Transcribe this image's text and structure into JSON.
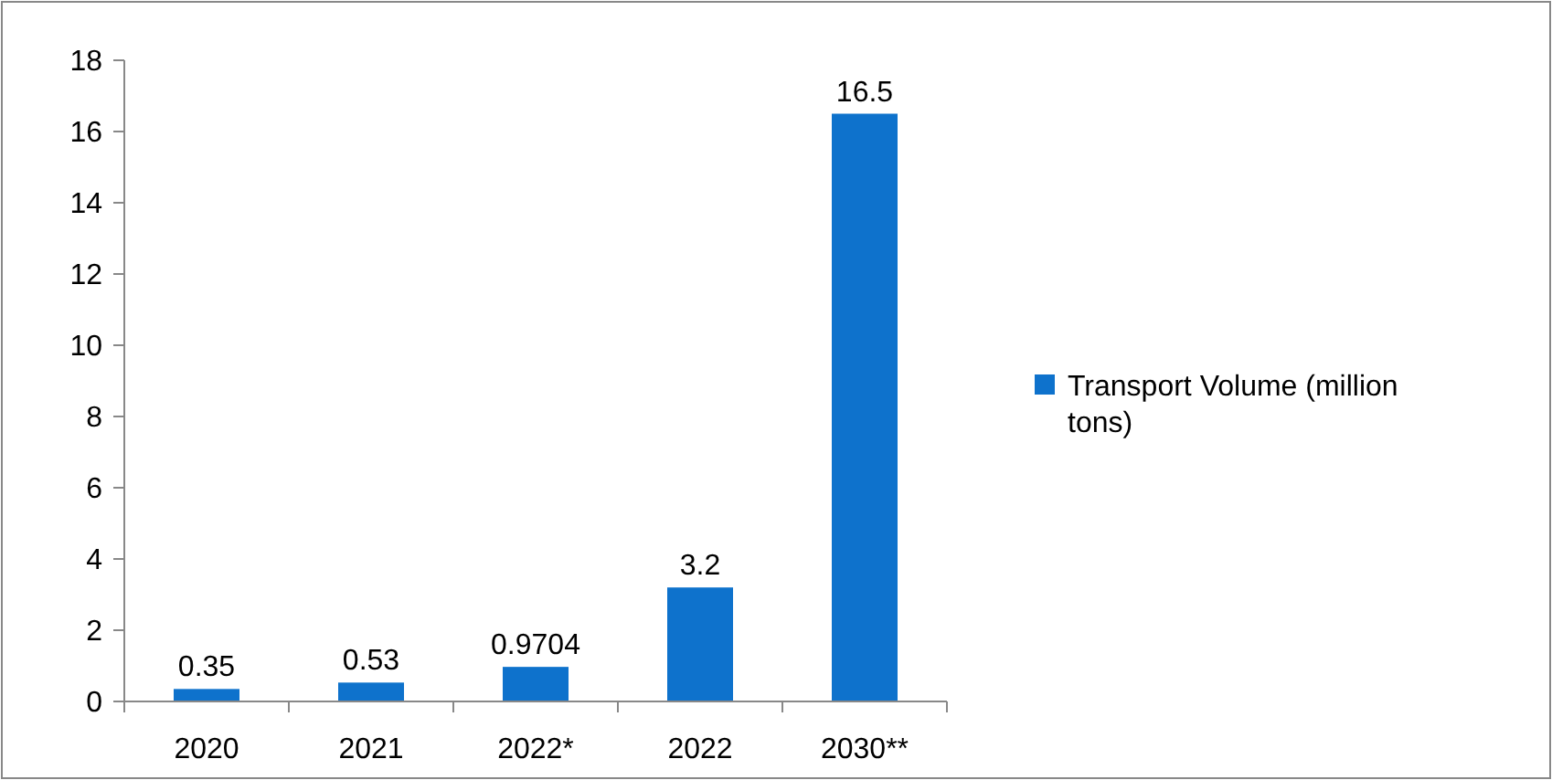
{
  "chart_data": {
    "type": "bar",
    "categories": [
      "2020",
      "2021",
      "2022*",
      "2022",
      "2030**"
    ],
    "series": [
      {
        "name": "Transport Volume (million tons)",
        "color": "#0e72cc",
        "values": [
          0.35,
          0.53,
          0.9704,
          3.2,
          16.5
        ]
      }
    ],
    "ylim": [
      0,
      18
    ],
    "yticks": [
      0,
      2,
      4,
      6,
      8,
      10,
      12,
      14,
      16,
      18
    ],
    "data_labels": true,
    "legend": "right"
  }
}
